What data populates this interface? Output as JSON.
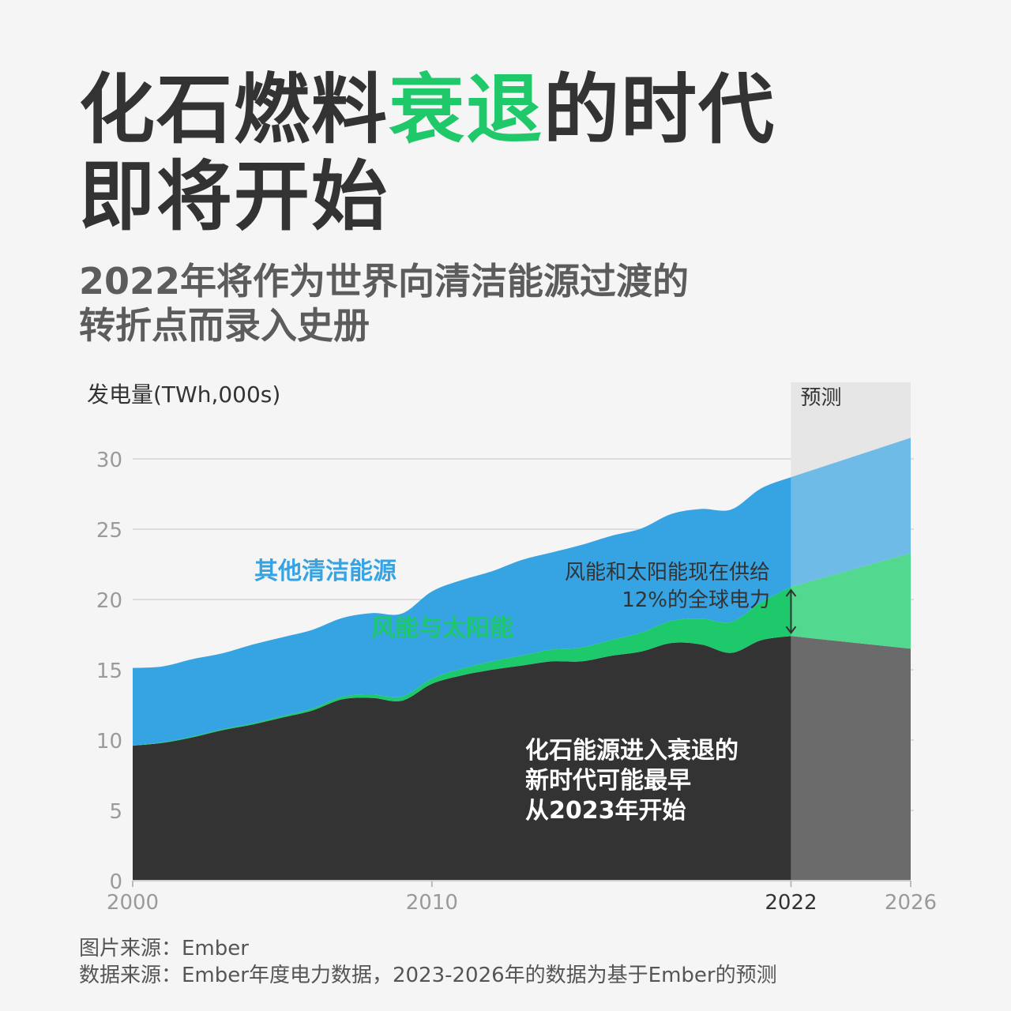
{
  "title": {
    "line1_part1": "化石燃料",
    "line1_highlight": "衰退",
    "line1_part2": "的时代",
    "line2": "即将开始"
  },
  "subtitle": {
    "line1": "2022年将作为世界向清洁能源过渡的",
    "line2": "转折点而录入史册"
  },
  "footer": {
    "source": "图片来源：Ember",
    "data_source": "数据来源：Ember年度电力数据，2023-2026年的数据为基于Ember的预测"
  },
  "colors": {
    "fossil": "#333333",
    "fossil_forecast": "#6b6b6b",
    "wind_solar": "#1dc96b",
    "wind_solar_forecast": "#52d98f",
    "other_clean": "#36a3e3",
    "other_clean_forecast": "#6fbbe8",
    "forecast_band": "#e6e6e6",
    "title_highlight": "#1fc96a"
  },
  "chart_data": {
    "type": "area",
    "stacked": true,
    "ylabel": "发电量(TWh,000s)",
    "ylim": [
      0,
      32
    ],
    "yticks": [
      0,
      5,
      10,
      15,
      20,
      25,
      30
    ],
    "xlim": [
      2000,
      2026
    ],
    "xticks": [
      2000,
      2010,
      2022,
      2026
    ],
    "grid": true,
    "forecast_start": 2022,
    "forecast_end": 2026,
    "forecast_label": "预测",
    "x": [
      2000,
      2001,
      2002,
      2003,
      2004,
      2005,
      2006,
      2007,
      2008,
      2009,
      2010,
      2011,
      2012,
      2013,
      2014,
      2015,
      2016,
      2017,
      2018,
      2019,
      2020,
      2021,
      2022,
      2026
    ],
    "series": [
      {
        "name": "化石能源",
        "values": [
          9.6,
          9.8,
          10.2,
          10.7,
          11.1,
          11.6,
          12.1,
          12.9,
          13.0,
          12.8,
          14.0,
          14.6,
          15.0,
          15.3,
          15.6,
          15.6,
          16.0,
          16.3,
          16.9,
          16.8,
          16.2,
          17.1,
          17.4,
          16.5
        ]
      },
      {
        "name": "风能与太阳能",
        "values": [
          0.03,
          0.04,
          0.06,
          0.07,
          0.09,
          0.11,
          0.14,
          0.18,
          0.23,
          0.3,
          0.37,
          0.48,
          0.6,
          0.71,
          0.84,
          0.98,
          1.13,
          1.35,
          1.58,
          1.84,
          2.2,
          2.7,
          3.5,
          6.8
        ]
      },
      {
        "name": "其他清洁能源",
        "values": [
          5.5,
          5.4,
          5.5,
          5.4,
          5.6,
          5.6,
          5.6,
          5.6,
          5.8,
          5.9,
          6.2,
          6.3,
          6.4,
          6.8,
          6.9,
          7.3,
          7.4,
          7.4,
          7.6,
          7.8,
          8.0,
          8.1,
          7.8,
          8.2
        ]
      }
    ],
    "annotations": {
      "other_clean_label": "其他清洁能源",
      "wind_solar_label": "风能与太阳能",
      "share_line1": "风能和太阳能现在供给",
      "share_line2": "12%的全球电力",
      "fossil_line1": "化石能源进入衰退的",
      "fossil_line2": "新时代可能最早",
      "fossil_line3": "从2023年开始"
    }
  }
}
